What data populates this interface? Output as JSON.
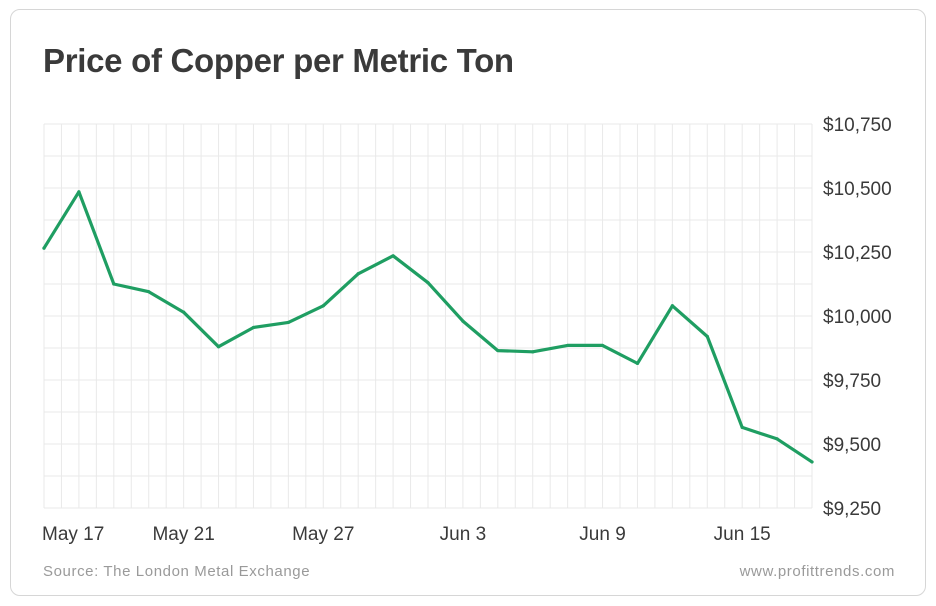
{
  "card": {
    "title": "Price of Copper per Metric Ton",
    "source": "Source: The London Metal Exchange",
    "website": "www.profittrends.com"
  },
  "colors": {
    "line": "#1f9e62",
    "grid": "#e9e9e9",
    "axis_text": "#3a3a3a"
  },
  "chart_data": {
    "type": "line",
    "title": "Price of Copper per Metric Ton",
    "xlabel": "",
    "ylabel": "",
    "ylim": [
      9250,
      10750
    ],
    "yticks": [
      9250,
      9500,
      9750,
      10000,
      10250,
      10500,
      10750
    ],
    "ytick_labels": [
      "$9,250",
      "$9,500",
      "$9,750",
      "$10,000",
      "$10,250",
      "$10,500",
      "$10,750"
    ],
    "xtick_labels": [
      {
        "index": 0,
        "label": "May 17"
      },
      {
        "index": 4,
        "label": "May 21"
      },
      {
        "index": 8,
        "label": "May 27"
      },
      {
        "index": 12,
        "label": "Jun 3"
      },
      {
        "index": 16,
        "label": "Jun 9"
      },
      {
        "index": 20,
        "label": "Jun 15"
      }
    ],
    "grid": true,
    "series": [
      {
        "values": [
          10265,
          10485,
          10125,
          10095,
          10015,
          9880,
          9955,
          9975,
          10040,
          10165,
          10235,
          10130,
          9980,
          9865,
          9860,
          9885,
          9885,
          9815,
          10040,
          9920,
          9565,
          9520,
          9430
        ]
      }
    ]
  }
}
